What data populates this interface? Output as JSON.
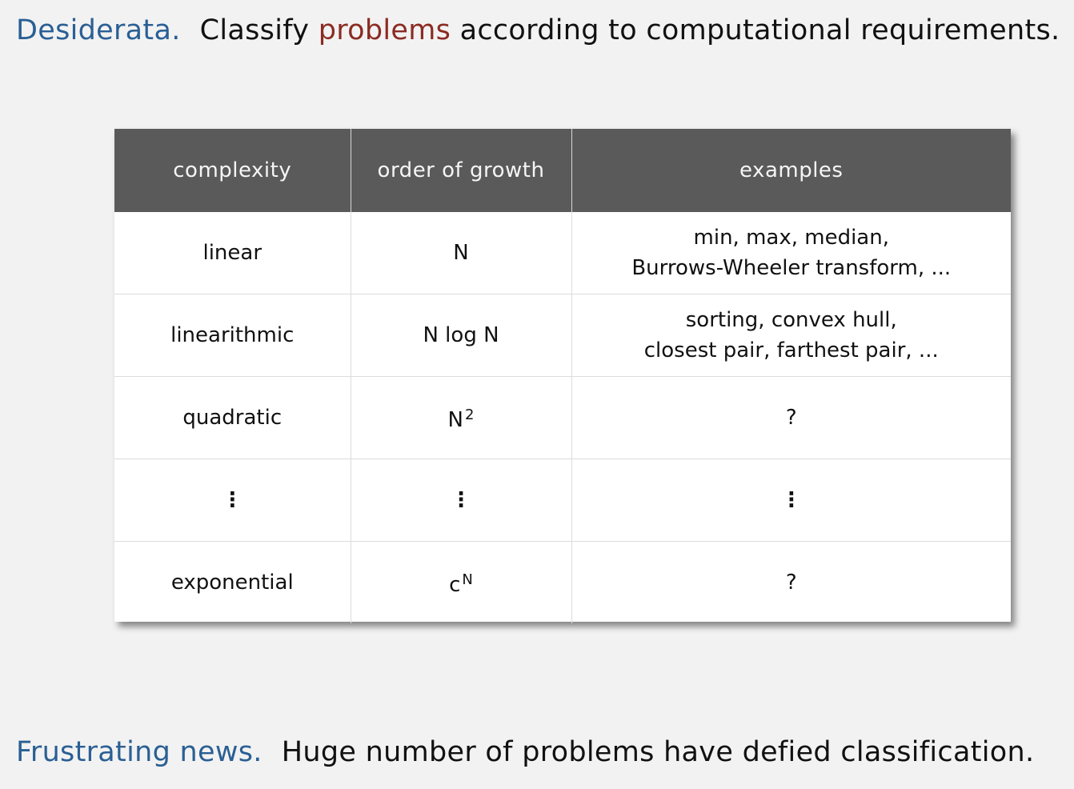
{
  "top_line": {
    "label": "Desiderata.",
    "text_before": "Classify ",
    "highlight": "problems",
    "text_after": " according to computational requirements."
  },
  "table": {
    "headers": [
      "complexity",
      "order of growth",
      "examples"
    ],
    "rows": [
      {
        "complexity": "linear",
        "order": "N",
        "order_sup": "",
        "examples": [
          "min, max, median,",
          "Burrows-Wheeler transform, ..."
        ]
      },
      {
        "complexity": "linearithmic",
        "order": "N log N",
        "order_sup": "",
        "examples": [
          "sorting, convex hull,",
          "closest pair, farthest pair, ..."
        ]
      },
      {
        "complexity": "quadratic",
        "order": "N",
        "order_sup": "2",
        "examples": [
          "?"
        ]
      },
      {
        "complexity": "⋮",
        "order": "⋮",
        "order_sup": "",
        "examples": [
          "⋮"
        ]
      },
      {
        "complexity": "exponential",
        "order": "c",
        "order_sup": "N",
        "examples": [
          "?"
        ]
      }
    ]
  },
  "bottom_line": {
    "label": "Frustrating news.",
    "text": "Huge number of problems have defied classification."
  },
  "colors": {
    "label_blue": "#2a5f94",
    "highlight_red": "#8b2b22",
    "header_bg": "#5a5a5a"
  }
}
